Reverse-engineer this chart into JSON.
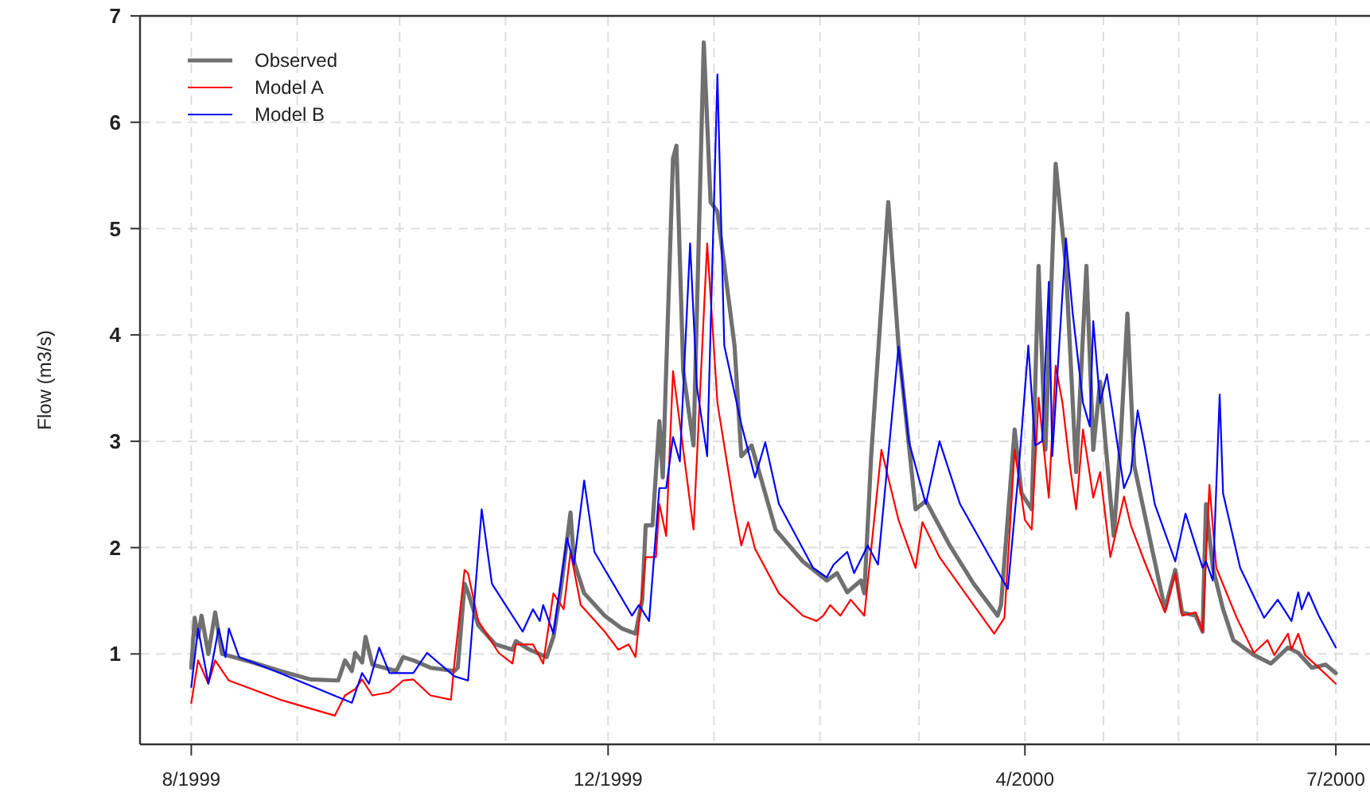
{
  "chart_data": {
    "type": "line",
    "ylabel": "Flow (m3/s)",
    "xlim": [
      "1999-07-17",
      "2000-07-11"
    ],
    "ylim": [
      0.15,
      7
    ],
    "yticks": [
      1,
      2,
      3,
      4,
      5,
      6,
      7
    ],
    "xticks": [
      {
        "value": "1999-08-01",
        "label": "8/1999"
      },
      {
        "value": "1999-09-01",
        "label": null
      },
      {
        "value": "1999-10-01",
        "label": null
      },
      {
        "value": "1999-11-01",
        "label": null
      },
      {
        "value": "1999-12-01",
        "label": "12/1999"
      },
      {
        "value": "2000-01-01",
        "label": null
      },
      {
        "value": "2000-02-01",
        "label": null
      },
      {
        "value": "2000-03-01",
        "label": null
      },
      {
        "value": "2000-04-01",
        "label": "4/2000"
      },
      {
        "value": "2000-04-24",
        "label": null
      },
      {
        "value": "2000-05-16",
        "label": null
      },
      {
        "value": "2000-06-08",
        "label": null
      },
      {
        "value": "2000-07-01",
        "label": "7/2000"
      }
    ],
    "grid": true,
    "legend": "top left",
    "line_style": "solid",
    "marker": "none",
    "series": [
      {
        "name": "Observed",
        "color": "#707070",
        "x": [
          "1999-08-01",
          "1999-08-02",
          "1999-08-03",
          "1999-08-04",
          "1999-08-06",
          "1999-08-08",
          "1999-08-10",
          "1999-08-19",
          "1999-08-27",
          "1999-09-05",
          "1999-09-13",
          "1999-09-15",
          "1999-09-17",
          "1999-09-18",
          "1999-09-20",
          "1999-09-21",
          "1999-09-23",
          "1999-09-30",
          "1999-10-02",
          "1999-10-05",
          "1999-10-10",
          "1999-10-17",
          "1999-10-18",
          "1999-10-20",
          "1999-10-21",
          "1999-10-24",
          "1999-10-29",
          "1999-11-03",
          "1999-11-04",
          "1999-11-08",
          "1999-11-13",
          "1999-11-15",
          "1999-11-17",
          "1999-11-20",
          "1999-11-21",
          "1999-11-24",
          "1999-11-30",
          "1999-12-05",
          "1999-12-09",
          "1999-12-11",
          "1999-12-12",
          "1999-12-14",
          "1999-12-16",
          "1999-12-17",
          "1999-12-20",
          "1999-12-21",
          "1999-12-23",
          "1999-12-26",
          "1999-12-29",
          "1999-12-31",
          "2000-01-02",
          "2000-01-07",
          "2000-01-09",
          "2000-01-12",
          "2000-01-19",
          "2000-01-27",
          "2000-02-03",
          "2000-02-06",
          "2000-02-09",
          "2000-02-13",
          "2000-02-14",
          "2000-02-16",
          "2000-02-21",
          "2000-02-24",
          "2000-02-29",
          "2000-03-03",
          "2000-03-10",
          "2000-03-17",
          "2000-03-24",
          "2000-03-25",
          "2000-03-29",
          "2000-03-31",
          "2000-04-03",
          "2000-04-05",
          "2000-04-07",
          "2000-04-10",
          "2000-04-13",
          "2000-04-16",
          "2000-04-19",
          "2000-04-21",
          "2000-04-23",
          "2000-04-27",
          "2000-04-29",
          "2000-05-01",
          "2000-05-03",
          "2000-05-08",
          "2000-05-12",
          "2000-05-15",
          "2000-05-17",
          "2000-05-21",
          "2000-05-23",
          "2000-05-24",
          "2000-05-26",
          "2000-05-29",
          "2000-06-01",
          "2000-06-07",
          "2000-06-12",
          "2000-06-17",
          "2000-06-20",
          "2000-06-24",
          "2000-06-28",
          "2000-07-01"
        ],
        "values": [
          0.87,
          1.34,
          1.16,
          1.36,
          1.0,
          1.39,
          1.0,
          0.92,
          0.84,
          0.76,
          0.75,
          0.94,
          0.84,
          1.01,
          0.92,
          1.16,
          0.9,
          0.84,
          0.97,
          0.94,
          0.87,
          0.84,
          0.87,
          1.66,
          1.58,
          1.27,
          1.09,
          1.04,
          1.12,
          1.04,
          0.97,
          1.16,
          1.57,
          2.33,
          1.87,
          1.57,
          1.36,
          1.24,
          1.19,
          1.51,
          2.21,
          2.21,
          3.19,
          2.66,
          5.66,
          5.78,
          3.66,
          2.96,
          6.75,
          5.25,
          5.16,
          3.9,
          2.86,
          2.96,
          2.17,
          1.87,
          1.69,
          1.76,
          1.58,
          1.69,
          1.57,
          2.86,
          5.25,
          3.9,
          2.36,
          2.44,
          2.02,
          1.66,
          1.36,
          1.46,
          3.11,
          2.51,
          2.36,
          4.65,
          2.92,
          5.61,
          4.65,
          2.71,
          4.65,
          2.92,
          3.56,
          2.11,
          3.0,
          4.2,
          2.77,
          2.02,
          1.42,
          1.79,
          1.39,
          1.36,
          1.21,
          2.41,
          1.81,
          1.42,
          1.13,
          0.99,
          0.91,
          1.06,
          1.01,
          0.87,
          0.9,
          0.82
        ]
      },
      {
        "name": "Model A",
        "color": "#ff0000",
        "x": [
          "1999-08-01",
          "1999-08-03",
          "1999-08-06",
          "1999-08-08",
          "1999-08-12",
          "1999-08-27",
          "1999-09-12",
          "1999-09-15",
          "1999-09-18",
          "1999-09-20",
          "1999-09-23",
          "1999-09-28",
          "1999-10-02",
          "1999-10-05",
          "1999-10-10",
          "1999-10-16",
          "1999-10-17",
          "1999-10-20",
          "1999-10-21",
          "1999-10-24",
          "1999-10-30",
          "1999-11-03",
          "1999-11-04",
          "1999-11-09",
          "1999-11-12",
          "1999-11-15",
          "1999-11-18",
          "1999-11-20",
          "1999-11-23",
          "1999-11-30",
          "1999-12-04",
          "1999-12-07",
          "1999-12-09",
          "1999-12-12",
          "1999-12-15",
          "1999-12-16",
          "1999-12-18",
          "1999-12-20",
          "1999-12-23",
          "1999-12-26",
          "1999-12-30",
          "2000-01-02",
          "2000-01-07",
          "2000-01-09",
          "2000-01-11",
          "2000-01-13",
          "2000-01-20",
          "2000-01-27",
          "2000-01-31",
          "2000-02-02",
          "2000-02-04",
          "2000-02-07",
          "2000-02-10",
          "2000-02-14",
          "2000-02-19",
          "2000-02-24",
          "2000-02-29",
          "2000-03-02",
          "2000-03-07",
          "2000-03-17",
          "2000-03-23",
          "2000-03-26",
          "2000-03-29",
          "2000-04-01",
          "2000-04-03",
          "2000-04-05",
          "2000-04-08",
          "2000-04-10",
          "2000-04-12",
          "2000-04-14",
          "2000-04-16",
          "2000-04-18",
          "2000-04-21",
          "2000-04-23",
          "2000-04-26",
          "2000-04-30",
          "2000-05-02",
          "2000-05-06",
          "2000-05-12",
          "2000-05-15",
          "2000-05-17",
          "2000-05-21",
          "2000-05-23",
          "2000-05-25",
          "2000-05-27",
          "2000-06-02",
          "2000-06-07",
          "2000-06-11",
          "2000-06-13",
          "2000-06-17",
          "2000-06-18",
          "2000-06-20",
          "2000-06-22",
          "2000-07-01"
        ],
        "values": [
          0.54,
          0.94,
          0.72,
          0.94,
          0.75,
          0.57,
          0.42,
          0.61,
          0.67,
          0.76,
          0.61,
          0.64,
          0.75,
          0.76,
          0.61,
          0.57,
          0.91,
          1.79,
          1.76,
          1.31,
          1.01,
          0.91,
          1.09,
          1.09,
          0.91,
          1.57,
          1.42,
          1.96,
          1.46,
          1.21,
          1.04,
          1.09,
          0.97,
          1.91,
          1.91,
          2.41,
          2.11,
          3.66,
          2.92,
          2.17,
          4.86,
          3.36,
          2.36,
          2.02,
          2.24,
          1.99,
          1.57,
          1.36,
          1.31,
          1.36,
          1.46,
          1.36,
          1.51,
          1.36,
          2.92,
          2.26,
          1.81,
          2.24,
          1.91,
          1.46,
          1.19,
          1.34,
          2.92,
          2.26,
          2.17,
          3.41,
          2.47,
          3.71,
          3.36,
          2.81,
          2.36,
          3.11,
          2.47,
          2.71,
          1.91,
          2.48,
          2.21,
          1.87,
          1.39,
          1.76,
          1.36,
          1.39,
          1.21,
          2.59,
          1.81,
          1.34,
          1.01,
          1.13,
          0.99,
          1.19,
          1.04,
          1.19,
          0.99,
          0.72
        ]
      },
      {
        "name": "Model B",
        "color": "#0000ff",
        "x": [
          "1999-08-01",
          "1999-08-03",
          "1999-08-06",
          "1999-08-09",
          "1999-08-11",
          "1999-08-12",
          "1999-08-15",
          "1999-08-27",
          "1999-09-17",
          "1999-09-20",
          "1999-09-22",
          "1999-09-25",
          "1999-09-28",
          "1999-10-05",
          "1999-10-09",
          "1999-10-17",
          "1999-10-21",
          "1999-10-25",
          "1999-10-28",
          "1999-11-06",
          "1999-11-09",
          "1999-11-11",
          "1999-11-12",
          "1999-11-15",
          "1999-11-19",
          "1999-11-21",
          "1999-11-24",
          "1999-11-27",
          "1999-12-08",
          "1999-12-10",
          "1999-12-13",
          "1999-12-16",
          "1999-12-18",
          "1999-12-20",
          "1999-12-22",
          "1999-12-25",
          "1999-12-27",
          "1999-12-30",
          "2000-01-02",
          "2000-01-04",
          "2000-01-09",
          "2000-01-13",
          "2000-01-16",
          "2000-01-20",
          "2000-01-30",
          "2000-02-03",
          "2000-02-05",
          "2000-02-09",
          "2000-02-11",
          "2000-02-15",
          "2000-02-18",
          "2000-02-24",
          "2000-02-27",
          "2000-03-03",
          "2000-03-07",
          "2000-03-13",
          "2000-03-27",
          "2000-03-30",
          "2000-04-02",
          "2000-04-04",
          "2000-04-06",
          "2000-04-08",
          "2000-04-09",
          "2000-04-13",
          "2000-04-15",
          "2000-04-18",
          "2000-04-20",
          "2000-04-21",
          "2000-04-23",
          "2000-04-25",
          "2000-04-30",
          "2000-05-02",
          "2000-05-04",
          "2000-05-06",
          "2000-05-09",
          "2000-05-15",
          "2000-05-18",
          "2000-05-23",
          "2000-05-24",
          "2000-05-26",
          "2000-05-28",
          "2000-05-29",
          "2000-06-03",
          "2000-06-10",
          "2000-06-14",
          "2000-06-18",
          "2000-06-20",
          "2000-06-21",
          "2000-06-23",
          "2000-06-26",
          "2000-07-01"
        ],
        "values": [
          0.69,
          1.24,
          0.72,
          1.24,
          0.97,
          1.24,
          0.97,
          0.82,
          0.54,
          0.82,
          0.72,
          1.06,
          0.82,
          0.82,
          1.01,
          0.79,
          0.75,
          2.36,
          1.66,
          1.21,
          1.42,
          1.31,
          1.46,
          1.19,
          2.09,
          1.84,
          2.63,
          1.96,
          1.36,
          1.46,
          1.31,
          2.56,
          2.56,
          3.04,
          2.81,
          4.86,
          3.51,
          2.86,
          6.45,
          3.9,
          3.16,
          2.66,
          2.99,
          2.41,
          1.81,
          1.72,
          1.84,
          1.96,
          1.76,
          2.02,
          1.84,
          3.89,
          3.0,
          2.41,
          3.0,
          2.41,
          1.61,
          2.66,
          3.9,
          2.96,
          3.0,
          4.5,
          2.86,
          4.91,
          4.2,
          3.36,
          3.14,
          4.13,
          3.36,
          3.63,
          2.56,
          2.71,
          3.29,
          2.96,
          2.41,
          1.87,
          2.32,
          1.81,
          1.87,
          1.69,
          3.44,
          2.51,
          1.81,
          1.34,
          1.51,
          1.31,
          1.58,
          1.42,
          1.58,
          1.36,
          1.06
        ]
      }
    ]
  }
}
